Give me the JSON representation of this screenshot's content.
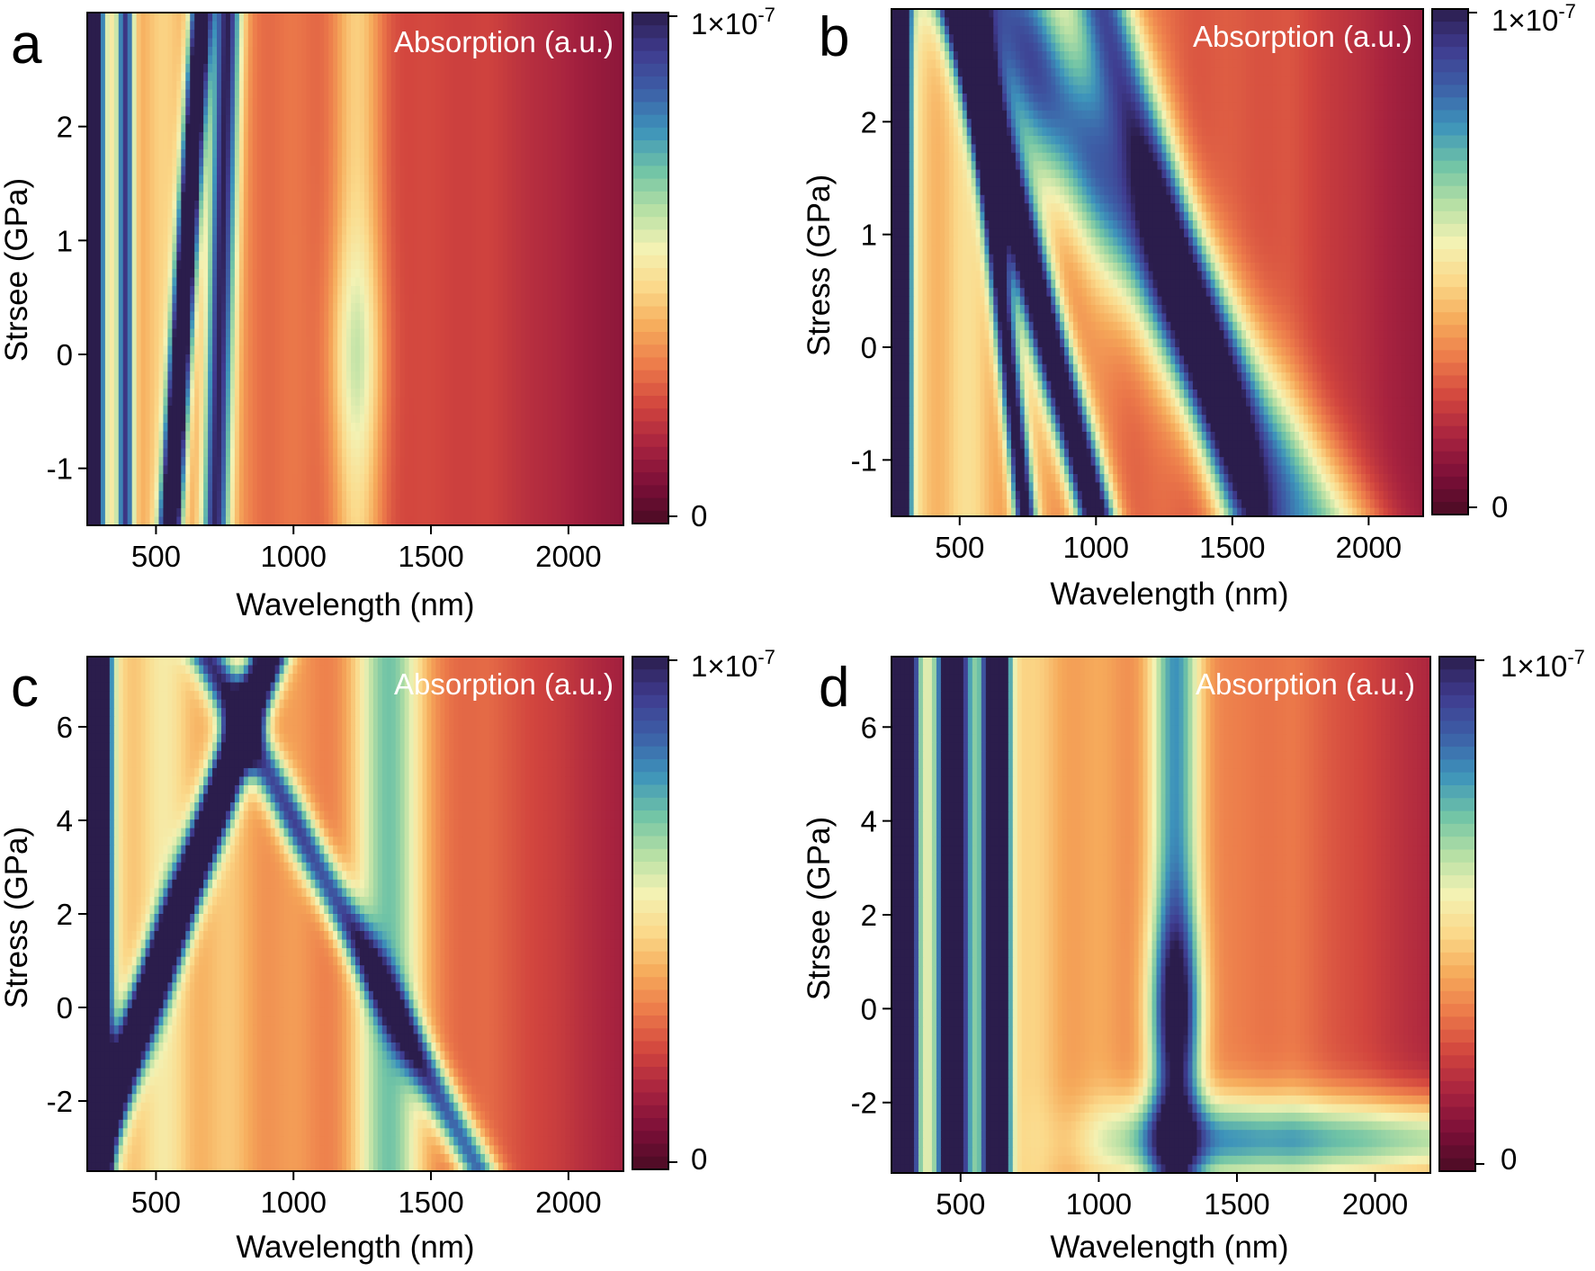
{
  "figure": {
    "colormap": [
      "#4a0b24",
      "#7c0f38",
      "#a8233f",
      "#d2453e",
      "#ec7a4a",
      "#f6ab5b",
      "#fbd98a",
      "#f3f2b4",
      "#b5dfa4",
      "#6fc3a6",
      "#3d93bb",
      "#3d5fa7",
      "#3f3b8f",
      "#2b1d4c"
    ]
  },
  "chart_data": [
    {
      "id": "a",
      "type": "heatmap",
      "panel_letter": "a",
      "legend_label": "Absorption (a.u.)",
      "xlabel": "Wavelength (nm)",
      "ylabel": "Strsee (GPa)",
      "xlim": [
        250,
        2200
      ],
      "ylim": [
        -1.5,
        3.0
      ],
      "xticks": [
        500,
        1000,
        1500,
        2000
      ],
      "xtick_labels": [
        "500",
        "1000",
        "1500",
        "2000"
      ],
      "yticks": [
        -1,
        0,
        1,
        2
      ],
      "ytick_labels": [
        "-1",
        "0",
        "1",
        "2"
      ],
      "colorbar": {
        "min_label": "0",
        "max_label": "1×10",
        "max_exp": "-7",
        "range": [
          0,
          1e-07
        ]
      },
      "features": [
        {
          "center": [
            270,
            330
          ],
          "slope": 0.0,
          "width": 32,
          "amp": 1.05
        },
        {
          "center": [
            390,
            330
          ],
          "slope": 0.0,
          "width": 30,
          "amp": 0.55
        },
        {
          "center": [
            590,
            2.0
          ],
          "slope": 25,
          "width": 38,
          "amp": 0.95
        },
        {
          "center": [
            730,
            0
          ],
          "slope": 10,
          "width": 50,
          "amp": 0.62,
          "varAmp": 0.05
        },
        {
          "center": [
            1230,
            0
          ],
          "slope": 0,
          "width": 95,
          "amp": 0.34,
          "varY": 1.0
        }
      ],
      "background": {
        "base": 0.22,
        "falloff": 0.9
      }
    },
    {
      "id": "b",
      "type": "heatmap",
      "panel_letter": "b",
      "legend_label": "Absorption (a.u.)",
      "xlabel": "Wavelength (nm)",
      "ylabel": "Stress (GPa)",
      "xlim": [
        250,
        2200
      ],
      "ylim": [
        -1.5,
        3.0
      ],
      "xticks": [
        500,
        1000,
        1500,
        2000
      ],
      "xtick_labels": [
        "500",
        "1000",
        "1500",
        "2000"
      ],
      "yticks": [
        -1,
        0,
        1,
        2
      ],
      "ytick_labels": [
        "-1",
        "0",
        "1",
        "2"
      ],
      "colorbar": {
        "min_label": "0",
        "max_label": "1×10",
        "max_exp": "-7",
        "range": [
          0,
          1e-07
        ]
      },
      "features": [
        {
          "center": [
            285,
            0
          ],
          "slope": 0,
          "width": 30,
          "amp": 1.1
        },
        {
          "center": [
            560,
            2.5
          ],
          "slope": -45,
          "width": 40,
          "amp": 0.7
        },
        {
          "center": [
            780,
            0.5
          ],
          "slope": -110,
          "width": 70,
          "amp": 0.85
        },
        {
          "center": [
            1200,
            1.6
          ],
          "slope": -120,
          "width": 110,
          "amp": 0.55
        },
        {
          "center": [
            1700,
            -1.2
          ],
          "slope": -250,
          "width": 220,
          "amp": 0.5
        }
      ],
      "background": {
        "base": 0.25,
        "falloff": 0.9
      }
    },
    {
      "id": "c",
      "type": "heatmap",
      "panel_letter": "c",
      "legend_label": "Absorption (a.u.)",
      "xlabel": "Wavelength (nm)",
      "ylabel": "Stress (GPa)",
      "xlim": [
        250,
        2200
      ],
      "ylim": [
        -3.5,
        7.5
      ],
      "xticks": [
        500,
        1000,
        1500,
        2000
      ],
      "xtick_labels": [
        "500",
        "1000",
        "1500",
        "2000"
      ],
      "yticks": [
        -2,
        0,
        2,
        4,
        6
      ],
      "ytick_labels": [
        "-2",
        "0",
        "2",
        "4",
        "6"
      ],
      "colorbar": {
        "min_label": "0",
        "max_label": "1×10",
        "max_exp": "-7",
        "range": [
          0,
          1e-07
        ]
      },
      "features": [
        {
          "center": [
            290,
            0
          ],
          "slope": 0,
          "width": 40,
          "amp": 1.1
        },
        {
          "center": [
            700,
            4.0
          ],
          "slope": 60,
          "width": 65,
          "amp": 1.0
        },
        {
          "center": [
            1000,
            4.0
          ],
          "slope": -90,
          "width": 70,
          "amp": 0.55
        },
        {
          "center": [
            1350,
            0
          ],
          "slope": 0,
          "width": 120,
          "amp": 0.4
        }
      ],
      "background": {
        "base": 0.28,
        "falloff": 0.85
      }
    },
    {
      "id": "d",
      "type": "heatmap",
      "panel_letter": "d",
      "legend_label": "Absorption (a.u.)",
      "xlabel": "Wavelength (nm)",
      "ylabel": "Strsee (GPa)",
      "xlim": [
        250,
        2200
      ],
      "ylim": [
        -3.5,
        7.5
      ],
      "xticks": [
        500,
        1000,
        1500,
        2000
      ],
      "xtick_labels": [
        "500",
        "1000",
        "1500",
        "2000"
      ],
      "yticks": [
        -2,
        0,
        2,
        4,
        6
      ],
      "ytick_labels": [
        "-2",
        "0",
        "2",
        "4",
        "6"
      ],
      "colorbar": {
        "min_label": "0",
        "max_label": "1×10",
        "max_exp": "-7",
        "range": [
          0,
          1e-07
        ]
      },
      "features": [
        {
          "center": [
            290,
            0
          ],
          "slope": 0,
          "width": 45,
          "amp": 1.1
        },
        {
          "center": [
            470,
            0
          ],
          "slope": 0,
          "width": 55,
          "amp": 0.8
        },
        {
          "center": [
            630,
            0
          ],
          "slope": 0,
          "width": 45,
          "amp": 1.1
        },
        {
          "center": [
            1280,
            0
          ],
          "slope": 0,
          "width": 90,
          "amp": 0.8,
          "varY": 2.0
        },
        {
          "center": [
            1900,
            -2.8
          ],
          "slope": 0,
          "width": 300,
          "amp": 0.45,
          "horizontal": true
        }
      ],
      "background": {
        "base": 0.3,
        "falloff": 0.8
      }
    }
  ]
}
